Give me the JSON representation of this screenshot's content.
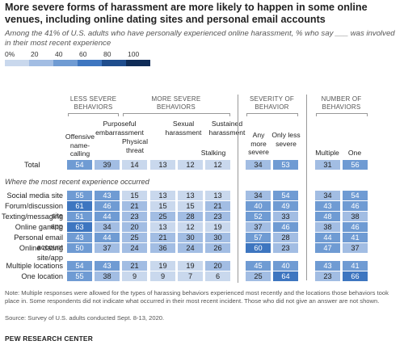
{
  "title": "More severe forms of harassment are more likely to happen in some online venues, including online dating sites and personal email accounts",
  "subtitle": "Among the 41% of U.S. adults who have personally experienced online harassment, % who say ___ was involved in their most recent experience",
  "scale": {
    "labels": [
      "0%",
      "20",
      "40",
      "60",
      "80",
      "100"
    ],
    "colors": [
      "#c9d8ed",
      "#a2bde3",
      "#6f9bd3",
      "#3e76c0",
      "#1f4d8d",
      "#0f2c57"
    ]
  },
  "group_headers": {
    "less_severe": "LESS SEVERE\nBEHAVIORS",
    "more_severe": "MORE SEVERE\nBEHAVIORS",
    "severity": "SEVERITY OF\nBEHAVIOR",
    "number": "NUMBER OF\nBEHAVIORS"
  },
  "section_label": "Where the most recent experience occurred",
  "chart_data": {
    "type": "table",
    "columns": [
      "Offensive name-calling",
      "Purposeful embarrassment",
      "Physical threat",
      "Stalking",
      "Sexual harassment",
      "Sustained harassment",
      "Any more severe",
      "Only less severe",
      "Multiple",
      "One"
    ],
    "rows": [
      {
        "label": "Total",
        "values": [
          54,
          39,
          14,
          13,
          12,
          12,
          34,
          53,
          31,
          56
        ]
      },
      {
        "label": "Social media site",
        "values": [
          55,
          43,
          15,
          13,
          13,
          13,
          34,
          54,
          34,
          54
        ]
      },
      {
        "label": "Forum/discussion site",
        "values": [
          61,
          46,
          21,
          15,
          15,
          21,
          40,
          49,
          43,
          46
        ]
      },
      {
        "label": "Texting/messaging app",
        "values": [
          51,
          44,
          23,
          25,
          28,
          23,
          52,
          33,
          48,
          38
        ]
      },
      {
        "label": "Online gaming",
        "values": [
          63,
          34,
          20,
          13,
          12,
          19,
          37,
          46,
          38,
          46
        ]
      },
      {
        "label": "Personal email account",
        "values": [
          43,
          44,
          25,
          21,
          30,
          30,
          57,
          28,
          44,
          41
        ]
      },
      {
        "label": "Online dating site/app",
        "values": [
          50,
          37,
          24,
          36,
          24,
          26,
          60,
          23,
          47,
          37
        ]
      },
      {
        "label": "Multiple locations",
        "values": [
          54,
          43,
          21,
          19,
          19,
          20,
          45,
          40,
          43,
          41
        ]
      },
      {
        "label": "One location",
        "values": [
          55,
          38,
          9,
          9,
          7,
          6,
          25,
          64,
          23,
          66
        ]
      }
    ]
  },
  "note": "Note: Multiple responses were allowed for the types of harassing behaviors experienced most recently and the locations those behaviors took place in. Some respondents did not indicate what occurred in their most recent incident. Those who did not give an answer are not shown.",
  "source": "Source: Survey of U.S. adults conducted Sept. 8-13, 2020.",
  "brand": "PEW RESEARCH CENTER"
}
